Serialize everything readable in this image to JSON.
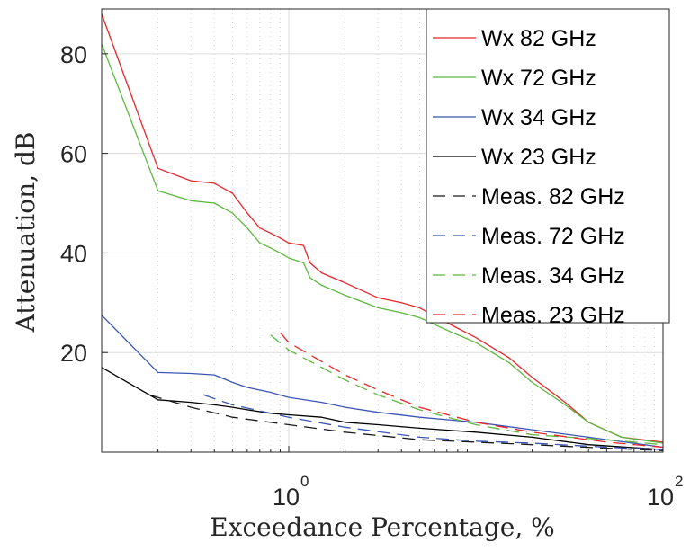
{
  "chart_data": {
    "type": "line",
    "xlabel": "Exceedance Percentage, %",
    "ylabel": "Attenuation, dB",
    "xscale": "log",
    "xlim": [
      0.1,
      100
    ],
    "ylim": [
      0,
      89
    ],
    "x_tick_labels": [
      {
        "value": 1,
        "base": "10",
        "exp": "0"
      },
      {
        "value": 100,
        "base": "10",
        "exp": "2"
      }
    ],
    "y_ticks": [
      20,
      40,
      60,
      80
    ],
    "grid": true,
    "legend_position": "top-right",
    "series": [
      {
        "name": "Wx 82 GHz",
        "color": "#e8262b",
        "style": "solid",
        "points": [
          [
            0.1,
            88
          ],
          [
            0.2,
            57
          ],
          [
            0.3,
            54.5
          ],
          [
            0.4,
            54
          ],
          [
            0.5,
            52
          ],
          [
            0.6,
            48
          ],
          [
            0.7,
            45
          ],
          [
            0.8,
            44
          ],
          [
            0.9,
            43
          ],
          [
            1.0,
            42
          ],
          [
            1.2,
            41.5
          ],
          [
            1.3,
            38
          ],
          [
            1.5,
            36
          ],
          [
            2,
            34
          ],
          [
            3,
            31
          ],
          [
            4,
            30
          ],
          [
            5,
            29
          ],
          [
            7,
            26
          ],
          [
            10,
            23
          ],
          [
            15,
            19
          ],
          [
            20,
            15
          ],
          [
            30,
            10
          ],
          [
            40,
            6
          ],
          [
            60,
            3
          ],
          [
            100,
            2
          ]
        ]
      },
      {
        "name": "Wx 72 GHz",
        "color": "#5cb83d",
        "style": "solid",
        "points": [
          [
            0.1,
            82
          ],
          [
            0.2,
            52.5
          ],
          [
            0.3,
            50.5
          ],
          [
            0.4,
            50
          ],
          [
            0.5,
            48
          ],
          [
            0.6,
            45
          ],
          [
            0.7,
            42
          ],
          [
            0.8,
            41
          ],
          [
            0.9,
            40
          ],
          [
            1.0,
            39
          ],
          [
            1.2,
            38
          ],
          [
            1.3,
            35
          ],
          [
            1.5,
            33.5
          ],
          [
            2,
            31.5
          ],
          [
            3,
            29
          ],
          [
            4,
            28
          ],
          [
            5,
            27
          ],
          [
            7,
            24.5
          ],
          [
            10,
            22
          ],
          [
            15,
            18
          ],
          [
            20,
            14
          ],
          [
            30,
            9.5
          ],
          [
            40,
            6
          ],
          [
            60,
            3
          ],
          [
            100,
            1.8
          ]
        ]
      },
      {
        "name": "Wx 34 GHz",
        "color": "#3a55b4",
        "style": "solid",
        "points": [
          [
            0.1,
            27.5
          ],
          [
            0.2,
            16
          ],
          [
            0.3,
            15.8
          ],
          [
            0.4,
            15.5
          ],
          [
            0.5,
            14
          ],
          [
            0.6,
            13
          ],
          [
            0.8,
            12
          ],
          [
            1.0,
            11
          ],
          [
            1.5,
            10
          ],
          [
            2,
            9
          ],
          [
            3,
            8
          ],
          [
            5,
            7
          ],
          [
            10,
            6
          ],
          [
            20,
            4.5
          ],
          [
            40,
            3
          ],
          [
            100,
            1
          ]
        ]
      },
      {
        "name": "Wx 23 GHz",
        "color": "#000000",
        "style": "solid",
        "points": [
          [
            0.1,
            17
          ],
          [
            0.2,
            10.5
          ],
          [
            0.3,
            10
          ],
          [
            0.4,
            9.5
          ],
          [
            0.5,
            9
          ],
          [
            0.6,
            8.5
          ],
          [
            0.8,
            7.8
          ],
          [
            1.0,
            7.5
          ],
          [
            1.5,
            7
          ],
          [
            2,
            6
          ],
          [
            3,
            5.5
          ],
          [
            5,
            4.8
          ],
          [
            10,
            4
          ],
          [
            20,
            3
          ],
          [
            40,
            1.5
          ],
          [
            100,
            0.5
          ]
        ]
      },
      {
        "name": "Meas. 82 GHz",
        "color": "#1a1a1a",
        "style": "dashed",
        "points": [
          [
            0.18,
            11.5
          ],
          [
            0.3,
            9
          ],
          [
            0.5,
            7
          ],
          [
            1,
            5.5
          ],
          [
            2,
            4
          ],
          [
            5,
            2.5
          ],
          [
            10,
            2
          ],
          [
            20,
            1.5
          ],
          [
            50,
            0.8
          ],
          [
            100,
            0.3
          ]
        ]
      },
      {
        "name": "Meas. 72 GHz",
        "color": "#3a55b4",
        "style": "dashed",
        "points": [
          [
            0.35,
            11.5
          ],
          [
            0.5,
            9.5
          ],
          [
            1,
            7
          ],
          [
            2,
            5
          ],
          [
            5,
            3
          ],
          [
            10,
            2.2
          ],
          [
            20,
            1.8
          ],
          [
            50,
            1
          ],
          [
            100,
            0.5
          ]
        ]
      },
      {
        "name": "Meas. 34 GHz",
        "color": "#5cb83d",
        "style": "dashed",
        "points": [
          [
            0.8,
            23.5
          ],
          [
            1,
            20.5
          ],
          [
            2,
            14.5
          ],
          [
            3,
            11.5
          ],
          [
            5,
            8.5
          ],
          [
            10,
            5.5
          ],
          [
            20,
            3.5
          ],
          [
            50,
            2.5
          ],
          [
            100,
            1.5
          ]
        ]
      },
      {
        "name": "Meas. 23 GHz",
        "color": "#e8262b",
        "style": "dashed",
        "points": [
          [
            0.9,
            24
          ],
          [
            1,
            22
          ],
          [
            2,
            15.5
          ],
          [
            3,
            12.5
          ],
          [
            5,
            9
          ],
          [
            10,
            6
          ],
          [
            20,
            4
          ],
          [
            50,
            2
          ],
          [
            100,
            1
          ]
        ]
      }
    ]
  }
}
